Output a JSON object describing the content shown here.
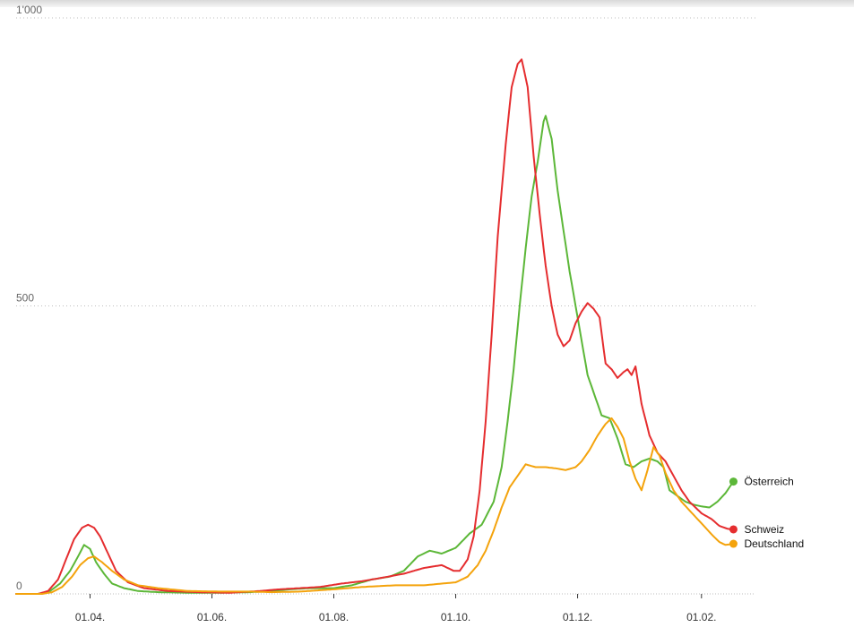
{
  "chart_data": {
    "type": "line",
    "grid": true,
    "legend": "direct labels at line ends",
    "y_ticks": [
      "0",
      "500",
      "1'000"
    ],
    "y_tick_values": [
      0,
      500,
      1000
    ],
    "ylim": [
      0,
      1000
    ],
    "x_ticks": [
      "01.04.",
      "01.06.",
      "01.08.",
      "01.10.",
      "01.12.",
      "01.02."
    ],
    "x_tick_dates": [
      "2020-04-01",
      "2020-06-01",
      "2020-08-01",
      "2020-10-01",
      "2020-12-01",
      "2021-02-01"
    ],
    "xlim": [
      "2020-02-24",
      "2021-02-28"
    ],
    "series": [
      {
        "name": "Österreich",
        "color": "#5cb738",
        "points": [
          [
            "2020-02-24",
            0
          ],
          [
            "2020-03-06",
            0
          ],
          [
            "2020-03-12",
            5
          ],
          [
            "2020-03-17",
            18
          ],
          [
            "2020-03-22",
            40
          ],
          [
            "2020-03-26",
            65
          ],
          [
            "2020-03-29",
            85
          ],
          [
            "2020-04-01",
            78
          ],
          [
            "2020-04-04",
            55
          ],
          [
            "2020-04-08",
            35
          ],
          [
            "2020-04-12",
            18
          ],
          [
            "2020-04-18",
            10
          ],
          [
            "2020-04-25",
            5
          ],
          [
            "2020-05-05",
            3
          ],
          [
            "2020-05-20",
            2
          ],
          [
            "2020-06-05",
            2
          ],
          [
            "2020-06-20",
            3
          ],
          [
            "2020-07-01",
            5
          ],
          [
            "2020-07-10",
            8
          ],
          [
            "2020-07-20",
            10
          ],
          [
            "2020-08-01",
            10
          ],
          [
            "2020-08-10",
            15
          ],
          [
            "2020-08-20",
            25
          ],
          [
            "2020-08-29",
            30
          ],
          [
            "2020-09-05",
            40
          ],
          [
            "2020-09-12",
            65
          ],
          [
            "2020-09-18",
            75
          ],
          [
            "2020-09-24",
            70
          ],
          [
            "2020-10-01",
            80
          ],
          [
            "2020-10-08",
            105
          ],
          [
            "2020-10-14",
            120
          ],
          [
            "2020-10-20",
            160
          ],
          [
            "2020-10-24",
            220
          ],
          [
            "2020-10-27",
            300
          ],
          [
            "2020-10-30",
            390
          ],
          [
            "2020-11-02",
            500
          ],
          [
            "2020-11-05",
            600
          ],
          [
            "2020-11-08",
            690
          ],
          [
            "2020-11-11",
            750
          ],
          [
            "2020-11-14",
            820
          ],
          [
            "2020-11-15",
            830
          ],
          [
            "2020-11-18",
            790
          ],
          [
            "2020-11-21",
            700
          ],
          [
            "2020-11-24",
            630
          ],
          [
            "2020-11-27",
            560
          ],
          [
            "2020-11-30",
            500
          ],
          [
            "2020-12-03",
            440
          ],
          [
            "2020-12-06",
            380
          ],
          [
            "2020-12-09",
            350
          ],
          [
            "2020-12-13",
            310
          ],
          [
            "2020-12-17",
            305
          ],
          [
            "2020-12-21",
            270
          ],
          [
            "2020-12-25",
            225
          ],
          [
            "2020-12-29",
            220
          ],
          [
            "2021-01-02",
            230
          ],
          [
            "2021-01-06",
            235
          ],
          [
            "2021-01-10",
            230
          ],
          [
            "2021-01-13",
            220
          ],
          [
            "2021-01-16",
            180
          ],
          [
            "2021-01-20",
            170
          ],
          [
            "2021-01-24",
            160
          ],
          [
            "2021-01-28",
            155
          ],
          [
            "2021-02-01",
            152
          ],
          [
            "2021-02-05",
            150
          ],
          [
            "2021-02-09",
            160
          ],
          [
            "2021-02-13",
            175
          ],
          [
            "2021-02-17",
            195
          ]
        ]
      },
      {
        "name": "Schweiz",
        "color": "#e52d2f",
        "points": [
          [
            "2020-02-24",
            0
          ],
          [
            "2020-03-06",
            0
          ],
          [
            "2020-03-11",
            5
          ],
          [
            "2020-03-16",
            25
          ],
          [
            "2020-03-20",
            60
          ],
          [
            "2020-03-24",
            95
          ],
          [
            "2020-03-28",
            115
          ],
          [
            "2020-03-31",
            120
          ],
          [
            "2020-04-03",
            115
          ],
          [
            "2020-04-06",
            100
          ],
          [
            "2020-04-10",
            70
          ],
          [
            "2020-04-14",
            40
          ],
          [
            "2020-04-20",
            20
          ],
          [
            "2020-04-28",
            10
          ],
          [
            "2020-05-10",
            5
          ],
          [
            "2020-05-25",
            3
          ],
          [
            "2020-06-10",
            2
          ],
          [
            "2020-06-25",
            5
          ],
          [
            "2020-07-05",
            8
          ],
          [
            "2020-07-15",
            10
          ],
          [
            "2020-07-25",
            12
          ],
          [
            "2020-08-05",
            18
          ],
          [
            "2020-08-15",
            22
          ],
          [
            "2020-08-25",
            28
          ],
          [
            "2020-09-05",
            35
          ],
          [
            "2020-09-15",
            45
          ],
          [
            "2020-09-24",
            50
          ],
          [
            "2020-09-30",
            40
          ],
          [
            "2020-10-03",
            40
          ],
          [
            "2020-10-07",
            60
          ],
          [
            "2020-10-10",
            100
          ],
          [
            "2020-10-13",
            180
          ],
          [
            "2020-10-16",
            300
          ],
          [
            "2020-10-19",
            450
          ],
          [
            "2020-10-22",
            620
          ],
          [
            "2020-10-26",
            780
          ],
          [
            "2020-10-29",
            880
          ],
          [
            "2020-11-01",
            920
          ],
          [
            "2020-11-03",
            928
          ],
          [
            "2020-11-06",
            880
          ],
          [
            "2020-11-09",
            760
          ],
          [
            "2020-11-12",
            660
          ],
          [
            "2020-11-15",
            570
          ],
          [
            "2020-11-18",
            500
          ],
          [
            "2020-11-21",
            450
          ],
          [
            "2020-11-24",
            430
          ],
          [
            "2020-11-27",
            440
          ],
          [
            "2020-11-30",
            470
          ],
          [
            "2020-12-03",
            490
          ],
          [
            "2020-12-06",
            505
          ],
          [
            "2020-12-09",
            495
          ],
          [
            "2020-12-12",
            480
          ],
          [
            "2020-12-15",
            400
          ],
          [
            "2020-12-18",
            390
          ],
          [
            "2020-12-21",
            375
          ],
          [
            "2020-12-24",
            385
          ],
          [
            "2020-12-26",
            390
          ],
          [
            "2020-12-28",
            380
          ],
          [
            "2020-12-30",
            395
          ],
          [
            "2021-01-02",
            330
          ],
          [
            "2021-01-06",
            275
          ],
          [
            "2021-01-10",
            245
          ],
          [
            "2021-01-14",
            230
          ],
          [
            "2021-01-18",
            205
          ],
          [
            "2021-01-22",
            180
          ],
          [
            "2021-01-26",
            160
          ],
          [
            "2021-02-01",
            140
          ],
          [
            "2021-02-06",
            130
          ],
          [
            "2021-02-10",
            118
          ],
          [
            "2021-02-14",
            113
          ],
          [
            "2021-02-17",
            112
          ]
        ]
      },
      {
        "name": "Deutschland",
        "color": "#f4a30c",
        "points": [
          [
            "2020-02-24",
            0
          ],
          [
            "2020-03-08",
            0
          ],
          [
            "2020-03-13",
            3
          ],
          [
            "2020-03-18",
            12
          ],
          [
            "2020-03-23",
            30
          ],
          [
            "2020-03-27",
            50
          ],
          [
            "2020-03-31",
            62
          ],
          [
            "2020-04-03",
            65
          ],
          [
            "2020-04-07",
            55
          ],
          [
            "2020-04-12",
            40
          ],
          [
            "2020-04-18",
            25
          ],
          [
            "2020-04-25",
            15
          ],
          [
            "2020-05-05",
            10
          ],
          [
            "2020-05-20",
            5
          ],
          [
            "2020-06-05",
            4
          ],
          [
            "2020-06-20",
            4
          ],
          [
            "2020-07-01",
            3
          ],
          [
            "2020-07-15",
            4
          ],
          [
            "2020-08-01",
            8
          ],
          [
            "2020-08-15",
            12
          ],
          [
            "2020-09-01",
            15
          ],
          [
            "2020-09-15",
            15
          ],
          [
            "2020-10-01",
            20
          ],
          [
            "2020-10-07",
            30
          ],
          [
            "2020-10-12",
            50
          ],
          [
            "2020-10-16",
            75
          ],
          [
            "2020-10-20",
            110
          ],
          [
            "2020-10-24",
            150
          ],
          [
            "2020-10-28",
            185
          ],
          [
            "2020-11-02",
            210
          ],
          [
            "2020-11-05",
            225
          ],
          [
            "2020-11-10",
            220
          ],
          [
            "2020-11-15",
            220
          ],
          [
            "2020-11-20",
            218
          ],
          [
            "2020-11-25",
            215
          ],
          [
            "2020-11-30",
            220
          ],
          [
            "2020-12-03",
            230
          ],
          [
            "2020-12-07",
            250
          ],
          [
            "2020-12-11",
            275
          ],
          [
            "2020-12-15",
            295
          ],
          [
            "2020-12-18",
            305
          ],
          [
            "2020-12-21",
            290
          ],
          [
            "2020-12-24",
            270
          ],
          [
            "2020-12-27",
            230
          ],
          [
            "2020-12-30",
            200
          ],
          [
            "2021-01-02",
            180
          ],
          [
            "2021-01-05",
            215
          ],
          [
            "2021-01-08",
            255
          ],
          [
            "2021-01-11",
            240
          ],
          [
            "2021-01-14",
            210
          ],
          [
            "2021-01-18",
            180
          ],
          [
            "2021-01-22",
            160
          ],
          [
            "2021-01-26",
            145
          ],
          [
            "2021-01-30",
            130
          ],
          [
            "2021-02-03",
            115
          ],
          [
            "2021-02-07",
            100
          ],
          [
            "2021-02-10",
            90
          ],
          [
            "2021-02-13",
            85
          ],
          [
            "2021-02-17",
            87
          ]
        ]
      }
    ]
  }
}
